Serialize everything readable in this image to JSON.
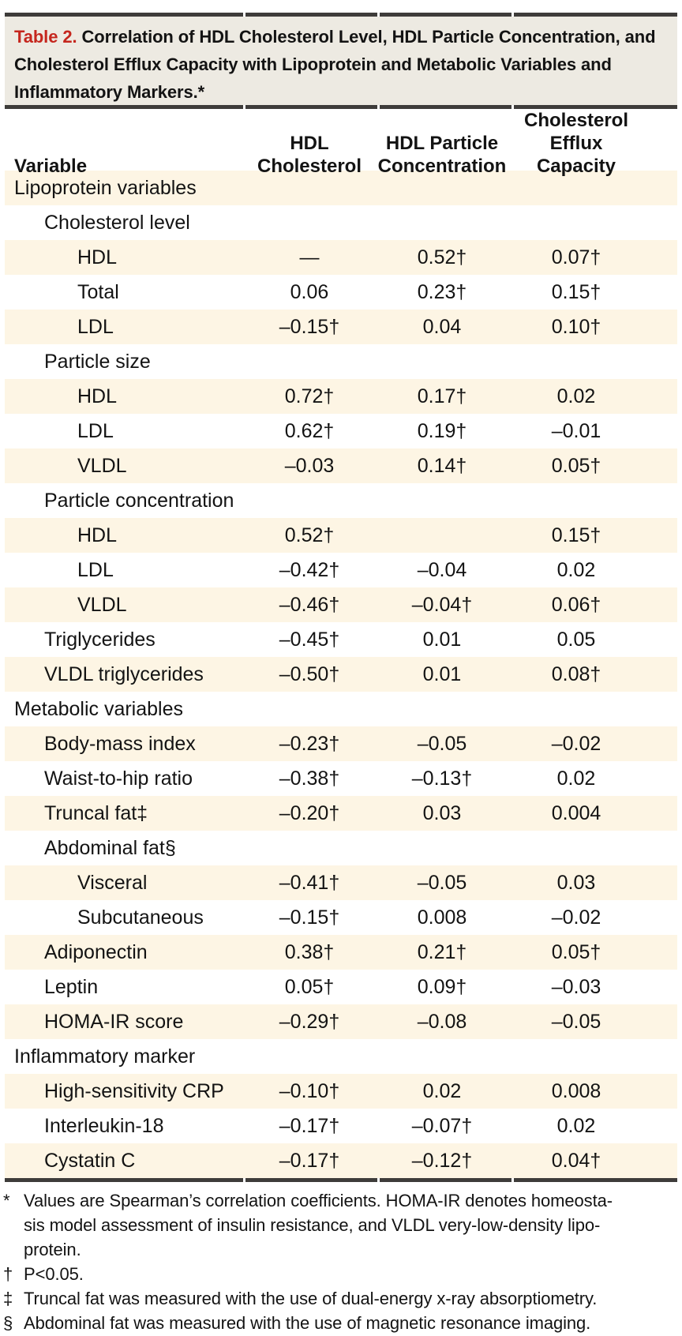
{
  "colors": {
    "accent_red": "#c5261d",
    "row_shade": "#fdf5e4",
    "title_band_bg": "#edeae2",
    "rule": "#3e3c3a",
    "text": "#131313"
  },
  "table": {
    "title_label": "Table 2.",
    "title_text": "Correlation of HDL Cholesterol Level, HDL Particle Concentration, and Cholesterol Efflux Capacity with Lipoprotein and Metabolic Variables and Inflammatory Markers.*",
    "columns": [
      "Variable",
      "HDL\nCholesterol",
      "HDL Particle\nConcentration",
      "Cholesterol\nEfflux Capacity"
    ],
    "rows": [
      {
        "label": "Lipoprotein variables",
        "indent": 0,
        "values": [
          "",
          "",
          ""
        ]
      },
      {
        "label": "Cholesterol level",
        "indent": 1,
        "values": [
          "",
          "",
          ""
        ]
      },
      {
        "label": "HDL",
        "indent": 2,
        "values": [
          "—",
          "0.52†",
          "0.07†"
        ]
      },
      {
        "label": "Total",
        "indent": 2,
        "values": [
          "0.06",
          "0.23†",
          "0.15†"
        ]
      },
      {
        "label": "LDL",
        "indent": 2,
        "values": [
          "–0.15†",
          "0.04",
          "0.10†"
        ]
      },
      {
        "label": "Particle size",
        "indent": 1,
        "values": [
          "",
          "",
          ""
        ]
      },
      {
        "label": "HDL",
        "indent": 2,
        "values": [
          "0.72†",
          "0.17†",
          "0.02"
        ]
      },
      {
        "label": "LDL",
        "indent": 2,
        "values": [
          "0.62†",
          "0.19†",
          "–0.01"
        ]
      },
      {
        "label": "VLDL",
        "indent": 2,
        "values": [
          "–0.03",
          "0.14†",
          "0.05†"
        ]
      },
      {
        "label": "Particle concentration",
        "indent": 1,
        "values": [
          "",
          "",
          ""
        ]
      },
      {
        "label": "HDL",
        "indent": 2,
        "values": [
          "0.52†",
          "",
          "0.15†"
        ]
      },
      {
        "label": "LDL",
        "indent": 2,
        "values": [
          "–0.42†",
          "–0.04",
          "0.02"
        ]
      },
      {
        "label": "VLDL",
        "indent": 2,
        "values": [
          "–0.46†",
          "–0.04†",
          "0.06†"
        ]
      },
      {
        "label": "Triglycerides",
        "indent": 1,
        "values": [
          "–0.45†",
          "0.01",
          "0.05"
        ]
      },
      {
        "label": "VLDL triglycerides",
        "indent": 1,
        "values": [
          "–0.50†",
          "0.01",
          "0.08†"
        ]
      },
      {
        "label": "Metabolic variables",
        "indent": 0,
        "values": [
          "",
          "",
          ""
        ]
      },
      {
        "label": "Body-mass index",
        "indent": 1,
        "values": [
          "–0.23†",
          "–0.05",
          "–0.02"
        ]
      },
      {
        "label": "Waist-to-hip ratio",
        "indent": 1,
        "values": [
          "–0.38†",
          "–0.13†",
          "0.02"
        ]
      },
      {
        "label": "Truncal fat‡",
        "indent": 1,
        "values": [
          "–0.20†",
          "0.03",
          "0.004"
        ]
      },
      {
        "label": "Abdominal fat§",
        "indent": 1,
        "values": [
          "",
          "",
          ""
        ]
      },
      {
        "label": "Visceral",
        "indent": 2,
        "values": [
          "–0.41†",
          "–0.05",
          "0.03"
        ]
      },
      {
        "label": "Subcutaneous",
        "indent": 2,
        "values": [
          "–0.15†",
          "0.008",
          "–0.02"
        ]
      },
      {
        "label": "Adiponectin",
        "indent": 1,
        "values": [
          "0.38†",
          "0.21†",
          "0.05†"
        ]
      },
      {
        "label": "Leptin",
        "indent": 1,
        "values": [
          "0.05†",
          "0.09†",
          "–0.03"
        ]
      },
      {
        "label": "HOMA-IR score",
        "indent": 1,
        "values": [
          "–0.29†",
          "–0.08",
          "–0.05"
        ]
      },
      {
        "label": "Inflammatory marker",
        "indent": 0,
        "values": [
          "",
          "",
          ""
        ]
      },
      {
        "label": "High-sensitivity CRP",
        "indent": 1,
        "values": [
          "–0.10†",
          "0.02",
          "0.008"
        ]
      },
      {
        "label": "Interleukin-18",
        "indent": 1,
        "values": [
          "–0.17†",
          "–0.07†",
          "0.02"
        ]
      },
      {
        "label": "Cystatin C",
        "indent": 1,
        "values": [
          "–0.17†",
          "–0.12†",
          "0.04†"
        ]
      }
    ]
  },
  "footnotes": [
    {
      "marker": "*",
      "lines": [
        "Values are Spearman’s correlation coefficients. HOMA-IR denotes homeosta-",
        "sis model assessment of insulin resistance, and VLDL very-low-density lipo-",
        "protein."
      ]
    },
    {
      "marker": "†",
      "lines": [
        "P<0.05."
      ]
    },
    {
      "marker": "‡",
      "lines": [
        "Truncal fat was measured with the use of dual-energy x-ray absorptiometry."
      ]
    },
    {
      "marker": "§",
      "lines": [
        "Abdominal fat was measured with the use of magnetic resonance imaging."
      ]
    }
  ]
}
